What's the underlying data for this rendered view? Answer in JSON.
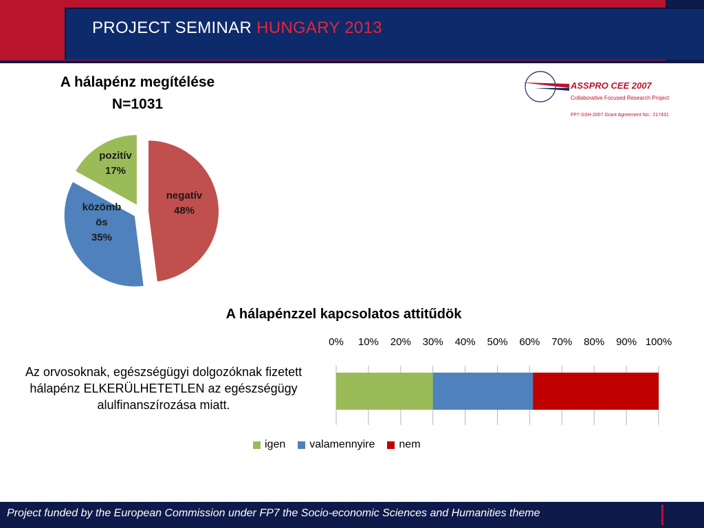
{
  "header": {
    "title_prefix": "PROJECT SEMINAR ",
    "title_highlight": "HUNGARY 2013"
  },
  "logo": {
    "name": "ASSPRO CEE 2007",
    "subtitle": "Collaborative Focused Research Project",
    "grant": "FP7-SSH-2007 Grant Agreement No.: 217431"
  },
  "chart_data": [
    {
      "type": "pie",
      "title": "A hálapénz megítélése",
      "subtitle": "N=1031",
      "slices": [
        {
          "label": "negatív",
          "value": 48,
          "value_label": "48%",
          "color": "#c0504d"
        },
        {
          "label": "közömbös",
          "label_lines": [
            "közömb",
            "ös"
          ],
          "value": 35,
          "value_label": "35%",
          "color": "#4f81bd"
        },
        {
          "label": "pozitív",
          "value": 17,
          "value_label": "17%",
          "color": "#9bbb59"
        }
      ]
    },
    {
      "type": "bar",
      "orientation": "horizontal",
      "stacked": "percent",
      "title": "A hálapénzzel kapcsolatos attitűdök",
      "categories": [
        "Az orvosoknak, egészségügyi dolgozóknak fizetett hálapénz ELKERÜLHETETLEN az egészségügy alulfinanszírozása miatt."
      ],
      "category_lines": [
        "Az orvosoknak, egészségügyi dolgozóknak fizetett",
        "hálapénz ELKERÜLHETETLEN az egészségügy",
        "alulfinanszírozása miatt."
      ],
      "series": [
        {
          "name": "igen",
          "values": [
            30
          ],
          "color": "#9bbb59"
        },
        {
          "name": "valamennyire",
          "values": [
            31
          ],
          "color": "#4f81bd"
        },
        {
          "name": "nem",
          "values": [
            39
          ],
          "color": "#c00000"
        }
      ],
      "xlim": [
        0,
        100
      ],
      "x_ticks": [
        "0%",
        "10%",
        "20%",
        "30%",
        "40%",
        "50%",
        "60%",
        "70%",
        "80%",
        "90%",
        "100%"
      ],
      "grid": true,
      "legend": "bottom"
    }
  ],
  "footer": {
    "text": "Project funded by the European Commission under FP7 the Socio-economic Sciences and Humanities theme"
  }
}
